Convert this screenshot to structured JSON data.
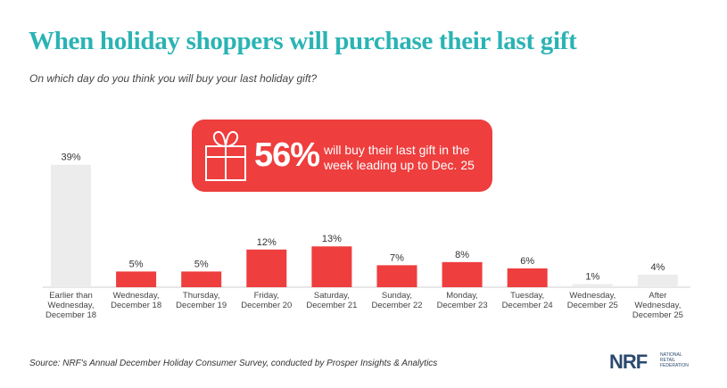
{
  "header": {
    "title": "When holiday shoppers will purchase their last gift",
    "subtitle": "On which day do you think you will buy your last holiday gift?"
  },
  "callout": {
    "percent": "56%",
    "text": "will buy their last gift in the week leading up to Dec. 25",
    "icon": "gift-icon",
    "color": "#ee3e3e"
  },
  "footer": {
    "source": "Source: NRF's Annual December Holiday Consumer Survey, conducted by Prosper Insights & Analytics"
  },
  "logo": {
    "letters": "NRF",
    "subtext": "NATIONAL RETAIL FEDERATION"
  },
  "colors": {
    "highlight": "#ee3e3e",
    "muted": "#ececec",
    "title": "#2bb3b4"
  },
  "chart_data": {
    "type": "bar",
    "categories": [
      [
        "Earlier than",
        "Wednesday,",
        "December 18"
      ],
      [
        "Wednesday,",
        "December 18"
      ],
      [
        "Thursday,",
        "December 19"
      ],
      [
        "Friday,",
        "December 20"
      ],
      [
        "Saturday,",
        "December 21"
      ],
      [
        "Sunday,",
        "December 22"
      ],
      [
        "Monday,",
        "December 23"
      ],
      [
        "Tuesday,",
        "December 24"
      ],
      [
        "Wednesday,",
        "December 25"
      ],
      [
        "After",
        "Wednesday,",
        "December 25"
      ]
    ],
    "values": [
      39,
      5,
      5,
      12,
      13,
      7,
      8,
      6,
      1,
      4
    ],
    "value_labels": [
      "39%",
      "5%",
      "5%",
      "12%",
      "13%",
      "7%",
      "8%",
      "6%",
      "1%",
      "4%"
    ],
    "highlighted": [
      false,
      true,
      true,
      true,
      true,
      true,
      true,
      true,
      false,
      false
    ],
    "unit": "%"
  }
}
